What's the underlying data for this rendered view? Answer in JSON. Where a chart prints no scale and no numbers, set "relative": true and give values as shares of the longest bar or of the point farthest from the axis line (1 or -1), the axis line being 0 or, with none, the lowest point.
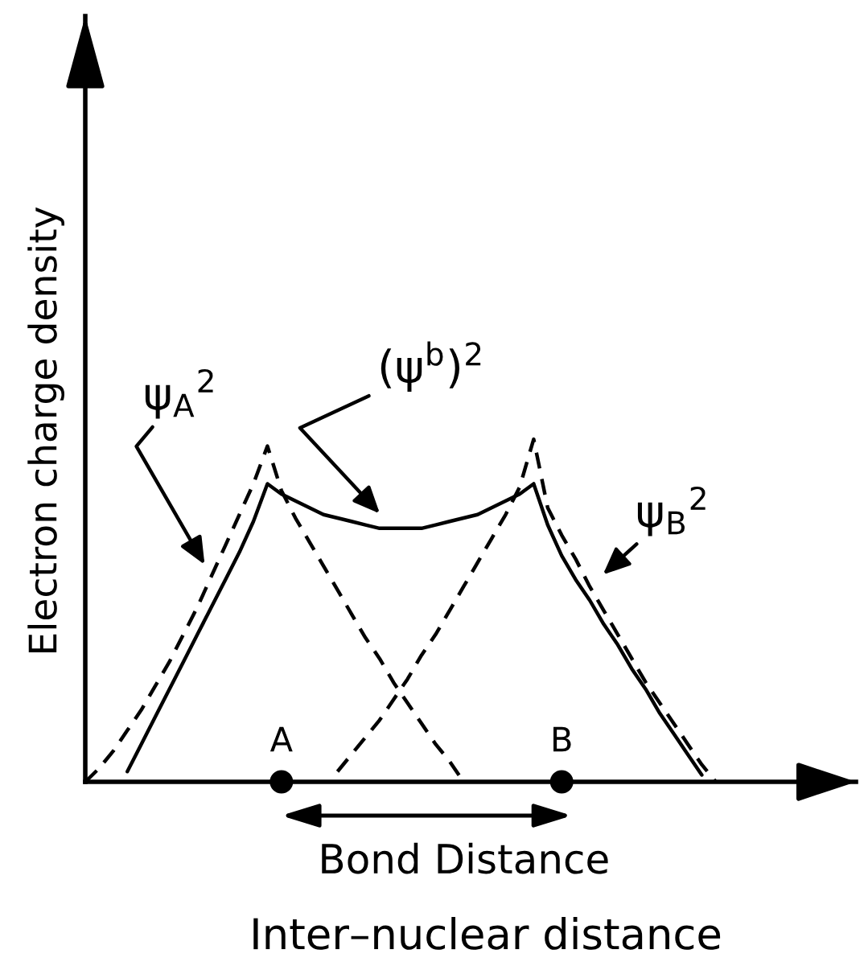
{
  "chart_data": {
    "type": "line",
    "relative": true,
    "xlabel": "Inter–nuclear distance",
    "ylabel": "Electron charge density",
    "categories": [
      null,
      null,
      null,
      null,
      null,
      null,
      null,
      null,
      null,
      null,
      null,
      null,
      null,
      null,
      "A",
      null,
      null,
      null,
      null,
      null,
      null,
      null,
      null,
      null,
      null,
      null,
      null,
      null,
      null,
      null,
      null,
      null,
      null,
      null,
      "B",
      null,
      null,
      null,
      null,
      null,
      null,
      null,
      null,
      null,
      null,
      null,
      null,
      null,
      null,
      null,
      null,
      null,
      null,
      null,
      null
    ],
    "series": [
      {
        "name": "ψ$_{A}$$^{2}$",
        "color": "#000000",
        "line_style": "dashed",
        "values": [
          0.0,
          0.04,
          0.09,
          0.15,
          0.21,
          0.28,
          0.35,
          0.43,
          0.51,
          0.6,
          0.69,
          0.78,
          0.87,
          0.98,
          0.85,
          0.77,
          0.7,
          0.63,
          0.56,
          0.49,
          0.42,
          0.36,
          0.29,
          0.23,
          0.17,
          0.11,
          0.06,
          0.0,
          null,
          null,
          null,
          null,
          null,
          null,
          null,
          null,
          null,
          null,
          null,
          null,
          null,
          null,
          null,
          null,
          null,
          null,
          null,
          null,
          null,
          null,
          null,
          null,
          null,
          null,
          null
        ]
      },
      {
        "name": "(ψ$^{b}$)$^{2}$",
        "color": "#000000",
        "line_style": "solid",
        "values": [
          null,
          null,
          null,
          0.03,
          0.11,
          0.19,
          0.27,
          0.35,
          0.43,
          0.51,
          0.59,
          0.67,
          0.76,
          0.87,
          0.84,
          0.82,
          0.8,
          0.78,
          0.77,
          0.76,
          0.75,
          0.74,
          0.74,
          0.74,
          0.74,
          0.75,
          0.76,
          0.77,
          0.78,
          0.8,
          0.82,
          0.84,
          0.87,
          0.75,
          0.66,
          0.59,
          0.53,
          0.46,
          0.4,
          0.33,
          0.27,
          0.2,
          0.14,
          0.08,
          0.02,
          null,
          null,
          null,
          null,
          null,
          null,
          null,
          null,
          null,
          null
        ]
      },
      {
        "name": "ψ$_{B}$$^{2}$",
        "color": "#000000",
        "line_style": "dashed",
        "values": [
          null,
          null,
          null,
          null,
          null,
          null,
          null,
          null,
          null,
          null,
          null,
          null,
          null,
          null,
          null,
          null,
          null,
          null,
          0.03,
          0.08,
          0.13,
          0.18,
          0.24,
          0.3,
          0.37,
          0.43,
          0.5,
          0.57,
          0.64,
          0.71,
          0.78,
          0.86,
          1.0,
          0.8,
          0.72,
          0.65,
          0.57,
          0.5,
          0.43,
          0.36,
          0.29,
          0.23,
          0.17,
          0.11,
          0.05,
          0.0,
          null,
          null,
          null,
          null,
          null,
          null,
          null,
          null,
          null
        ]
      },
      {
        "type": "scatter",
        "color": "#000000",
        "marker": "circle",
        "values": [
          null,
          null,
          null,
          null,
          null,
          null,
          null,
          null,
          null,
          null,
          null,
          null,
          null,
          null,
          0,
          null,
          null,
          null,
          null,
          null,
          null,
          null,
          null,
          null,
          null,
          null,
          null,
          null,
          null,
          null,
          null,
          null,
          null,
          null,
          0,
          null,
          null,
          null,
          null,
          null,
          null,
          null,
          null,
          null,
          null,
          null,
          null,
          null,
          null,
          null,
          null,
          null,
          null,
          null,
          null
        ]
      }
    ],
    "annotations": [
      "Bond Distance"
    ]
  }
}
